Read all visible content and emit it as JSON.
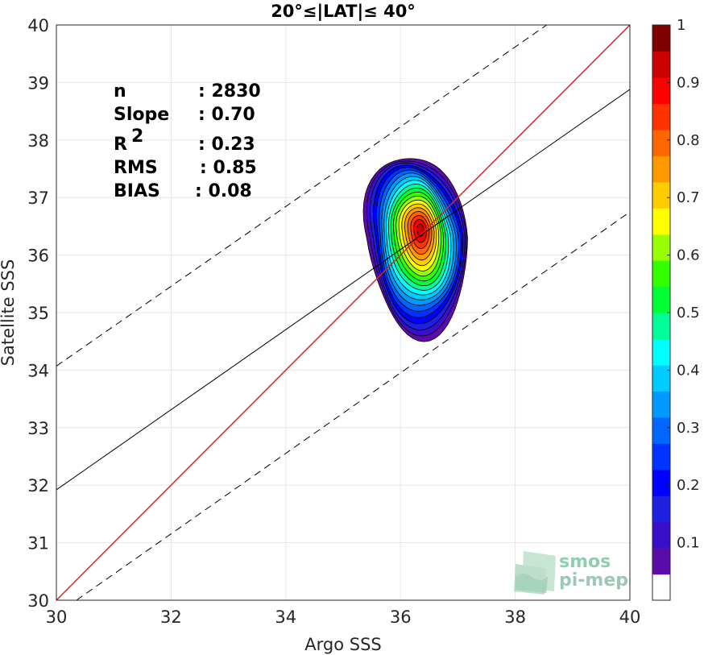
{
  "chart_data": {
    "type": "density-scatter",
    "title": "20°≤|LAT|≤ 40°",
    "xlabel": "Argo SSS",
    "ylabel": "Satellite SSS",
    "xlim": [
      30,
      40
    ],
    "ylim": [
      30,
      40
    ],
    "xticks": [
      "30",
      "32",
      "34",
      "36",
      "38",
      "40"
    ],
    "yticks": [
      "30",
      "31",
      "32",
      "33",
      "34",
      "35",
      "36",
      "37",
      "38",
      "39",
      "40"
    ],
    "grid": true,
    "stats": [
      {
        "label": "n",
        "value": ": 2830"
      },
      {
        "label": "Slope",
        "value": ": 0.70"
      },
      {
        "label": "R",
        "sup": "2",
        "value": ": 0.23"
      },
      {
        "label": "RMS",
        "value": ": 0.85"
      },
      {
        "label": "BIAS",
        "value": ": 0.08"
      }
    ],
    "lines": {
      "identity": {
        "slope": 1,
        "intercept": 0,
        "color": "#d62728"
      },
      "regression": {
        "x": [
          30,
          40
        ],
        "y": [
          31.92,
          38.88
        ],
        "color": "#000000"
      },
      "confidence_upper": {
        "x": [
          30,
          38.55
        ],
        "y": [
          34.07,
          40
        ],
        "dashed": true
      },
      "confidence_lower": {
        "x": [
          30.35,
          40
        ],
        "y": [
          30,
          36.75
        ],
        "dashed": true
      }
    },
    "density_peak": {
      "x": 36.35,
      "y": 36.45,
      "value": 1
    },
    "contour_levels": [
      0.05,
      0.1,
      0.15,
      0.2,
      0.25,
      0.3,
      0.35,
      0.4,
      0.45,
      0.5,
      0.55,
      0.6,
      0.65,
      0.7,
      0.75,
      0.8,
      0.85,
      0.9,
      0.95,
      1
    ],
    "colorbar": {
      "ticks": [
        "0.1",
        "0.2",
        "0.3",
        "0.4",
        "0.5",
        "0.6",
        "0.7",
        "0.8",
        "0.9",
        "1"
      ],
      "range": [
        0,
        1
      ],
      "colors": [
        "#ffffff",
        "#5b0ca8",
        "#3a0fcc",
        "#1f1fe0",
        "#0000ff",
        "#0033ff",
        "#0066ff",
        "#0099ff",
        "#00ccff",
        "#00ffff",
        "#00ff99",
        "#00ff33",
        "#33ff00",
        "#99ff00",
        "#ffff00",
        "#ffcc00",
        "#ff9900",
        "#ff6600",
        "#ff3300",
        "#ff0000",
        "#cc0000",
        "#800000"
      ]
    }
  },
  "watermark": {
    "line1": "smos",
    "line2": "pi-mep"
  }
}
